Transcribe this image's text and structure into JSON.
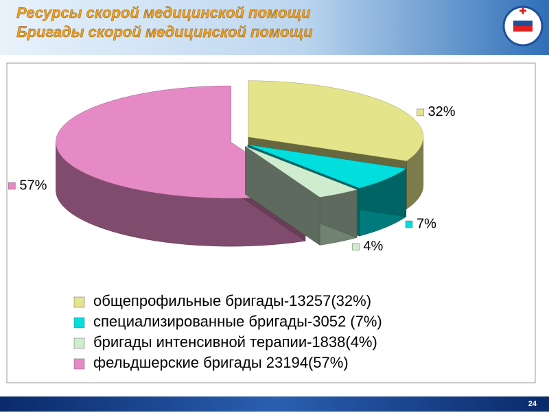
{
  "header": {
    "title_lines": [
      "Ресурсы скорой медицинской помощи",
      "Бригады скорой медицинской помощи"
    ]
  },
  "chart_data": {
    "type": "pie",
    "categories": [
      "общепрофильные бригады-13257(32%)",
      "специализированные бригады-3052 (7%)",
      "бригады интенсивной терапии-1838(4%)",
      "фельдшерские бригады 23194(57%)"
    ],
    "values": [
      32,
      7,
      4,
      57
    ],
    "value_labels": [
      "32%",
      "7%",
      "4%",
      "57%"
    ],
    "colors": [
      "#e4e48a",
      "#00dede",
      "#cfeccf",
      "#e68ac6"
    ]
  },
  "page_number": "24"
}
